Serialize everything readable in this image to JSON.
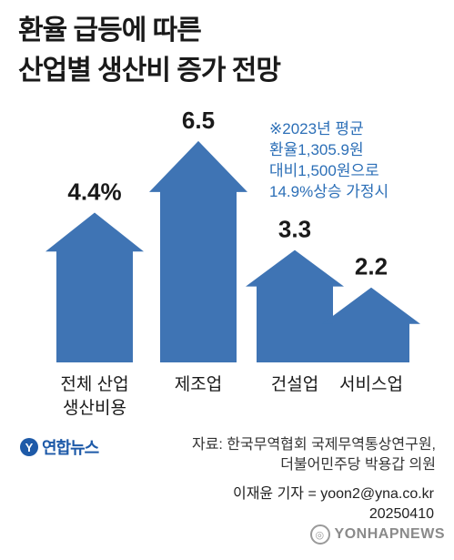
{
  "title": [
    "환율 급등에 따른",
    "산업별 생산비 증가 전망"
  ],
  "note": [
    "※2023년 평균",
    "환율1,305.9원",
    "대비1,500원으로",
    "14.9%상승 가정시"
  ],
  "chart_data": {
    "type": "bar",
    "title": "환율 급등에 따른 산업별 생산비 증가 전망",
    "categories": [
      "전체 산업 생산비용",
      "제조업",
      "건설업",
      "서비스업"
    ],
    "category_lines": [
      [
        "전체 산업",
        "생산비용"
      ],
      [
        "제조업"
      ],
      [
        "건설업"
      ],
      [
        "서비스업"
      ]
    ],
    "values": [
      4.4,
      6.5,
      3.3,
      2.2
    ],
    "value_labels": [
      "4.4%",
      "6.5",
      "3.3",
      "2.2"
    ],
    "unit": "%",
    "bar_color": "#3f74b4"
  },
  "logo": {
    "text": "연합뉴스",
    "mark": "Y"
  },
  "source": [
    "자료: 한국무역협회 국제무역통상연구원,",
    "더불어민주당 박용갑 의원"
  ],
  "reporter": [
    "이재윤 기자 = yoon2@yna.co.kr",
    "20250410"
  ],
  "watermark": "YONHAPNEWS"
}
